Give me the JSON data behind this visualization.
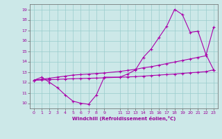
{
  "xlabel": "Windchill (Refroidissement éolien,°C)",
  "background_color": "#cce8e8",
  "grid_color": "#99cccc",
  "line_color": "#aa00aa",
  "xlim": [
    -0.5,
    23.5
  ],
  "ylim": [
    9.5,
    19.5
  ],
  "xticks": [
    0,
    1,
    2,
    3,
    4,
    5,
    6,
    7,
    8,
    9,
    11,
    12,
    13,
    14,
    15,
    16,
    17,
    18,
    19,
    20,
    21,
    22,
    23
  ],
  "yticks": [
    10,
    11,
    12,
    13,
    14,
    15,
    16,
    17,
    18,
    19
  ],
  "series1_x": [
    0,
    1,
    2,
    3,
    4,
    5,
    6,
    7,
    8,
    9,
    11,
    12,
    13,
    14,
    15,
    16,
    17,
    18,
    19,
    20,
    21,
    22,
    23
  ],
  "series1_y": [
    12.2,
    12.5,
    12.0,
    11.5,
    10.8,
    10.2,
    10.0,
    9.9,
    10.8,
    12.5,
    12.5,
    12.8,
    13.2,
    14.4,
    15.2,
    16.3,
    17.4,
    19.0,
    18.5,
    16.8,
    16.9,
    14.7,
    13.2
  ],
  "series2_x": [
    0,
    1,
    2,
    3,
    4,
    5,
    6,
    7,
    8,
    9,
    11,
    12,
    13,
    14,
    15,
    16,
    17,
    18,
    19,
    20,
    21,
    22,
    23
  ],
  "series2_y": [
    12.2,
    12.3,
    12.4,
    12.5,
    12.6,
    12.7,
    12.75,
    12.8,
    12.85,
    12.9,
    13.05,
    13.15,
    13.25,
    13.4,
    13.5,
    13.65,
    13.8,
    13.95,
    14.1,
    14.25,
    14.4,
    14.55,
    17.3
  ],
  "series3_x": [
    0,
    1,
    2,
    3,
    4,
    5,
    6,
    7,
    8,
    9,
    11,
    12,
    13,
    14,
    15,
    16,
    17,
    18,
    19,
    20,
    21,
    22,
    23
  ],
  "series3_y": [
    12.2,
    12.23,
    12.26,
    12.29,
    12.32,
    12.35,
    12.37,
    12.39,
    12.41,
    12.44,
    12.49,
    12.52,
    12.55,
    12.6,
    12.65,
    12.7,
    12.75,
    12.8,
    12.86,
    12.92,
    12.97,
    13.03,
    13.2
  ]
}
